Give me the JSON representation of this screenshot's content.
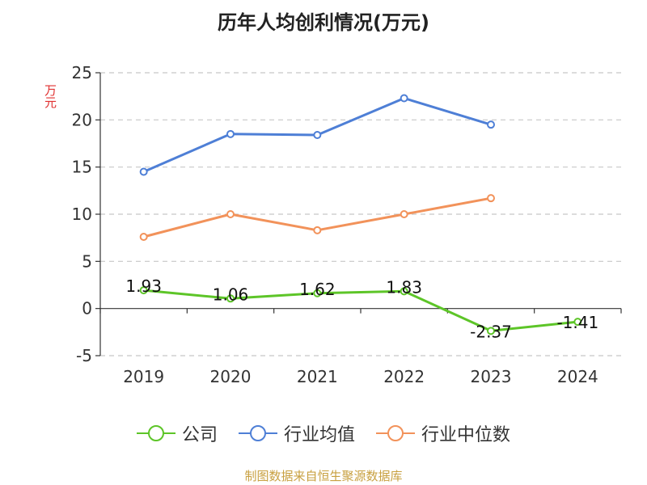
{
  "chart_data": {
    "type": "line",
    "title": "历年人均创利情况(万元)",
    "ylabel": "万元",
    "categories": [
      "2019",
      "2020",
      "2021",
      "2022",
      "2023",
      "2024"
    ],
    "ylim": [
      -5,
      25
    ],
    "yticks": [
      -5,
      0,
      5,
      10,
      15,
      20,
      25
    ],
    "grid": true,
    "legend_position": "bottom",
    "series": [
      {
        "name": "公司",
        "color": "#5dc528",
        "values": [
          1.93,
          1.06,
          1.62,
          1.83,
          -2.37,
          -1.41
        ],
        "labels": [
          "1.93",
          "1.06",
          "1.62",
          "1.83",
          "-2.37",
          "-1.41"
        ]
      },
      {
        "name": "行业均值",
        "color": "#4e7fd6",
        "values": [
          14.5,
          18.5,
          18.4,
          22.3,
          19.5,
          null
        ]
      },
      {
        "name": "行业中位数",
        "color": "#f2925a",
        "values": [
          7.6,
          10.0,
          8.3,
          10.0,
          11.7,
          null
        ]
      }
    ]
  },
  "footer": {
    "source": "制图数据来自恒生聚源数据库"
  }
}
